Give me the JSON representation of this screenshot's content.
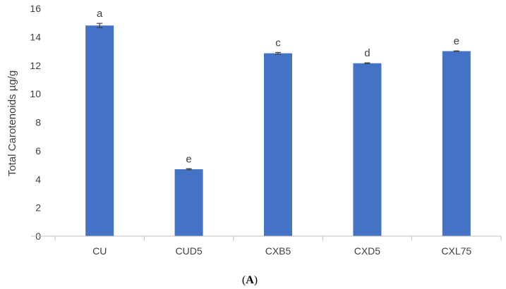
{
  "chart_data": {
    "type": "bar",
    "categories": [
      "CU",
      "CUD5",
      "CXB5",
      "CXD5",
      "CXL75"
    ],
    "values": [
      14.8,
      4.7,
      12.85,
      12.15,
      13.0
    ],
    "errors": [
      0.15,
      0.04,
      0.06,
      0.03,
      0.02
    ],
    "significance_letters": [
      "a",
      "e",
      "c",
      "d",
      "e"
    ],
    "ylabel": "Total Carotenoids µg/g",
    "xlabel": "",
    "ylim": [
      0,
      16
    ],
    "yticks": [
      0,
      2,
      4,
      6,
      8,
      10,
      12,
      14,
      16
    ],
    "grid": false,
    "legend": "none",
    "bar_color": "#4472c4",
    "error_color": "#404040",
    "axis_color": "#bfbfbf"
  },
  "caption": {
    "open": "(",
    "letter": "A",
    "close": ")"
  }
}
